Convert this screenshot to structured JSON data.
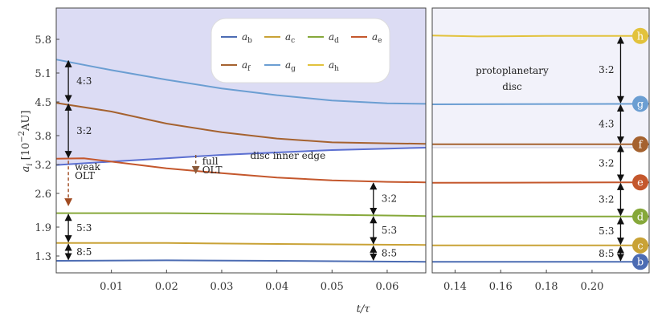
{
  "chart_data": {
    "type": "line",
    "xlabel": "t/τ",
    "ylabel": "a_i [10^-2 AU]",
    "ylim": [
      0.95,
      6.45
    ],
    "grid": false,
    "legend_position": "top-center",
    "panels": [
      {
        "name": "left",
        "xlim": [
          0,
          0.067
        ],
        "xticks": [
          0.01,
          0.02,
          0.03,
          0.04,
          0.05,
          0.06
        ],
        "xtick_labels": [
          "0.01",
          "0.02",
          "0.03",
          "0.04",
          "0.05",
          "0.06"
        ]
      },
      {
        "name": "right",
        "xlim": [
          0.13,
          0.225
        ],
        "xticks": [
          0.14,
          0.16,
          0.18,
          0.2
        ],
        "xtick_labels": [
          "0.14",
          "0.16",
          "0.18",
          "0.20"
        ]
      }
    ],
    "yticks": [
      1.3,
      1.9,
      2.6,
      3.2,
      3.8,
      4.5,
      5.1,
      5.8
    ],
    "ytick_labels": [
      "1.3",
      "1.9",
      "2.6",
      "3.2",
      "3.8",
      "4.5",
      "5.1",
      "5.8"
    ],
    "legend": [
      {
        "key": "b",
        "sub": "b",
        "color": "#4c6cb3"
      },
      {
        "key": "c",
        "sub": "c",
        "color": "#c9a236"
      },
      {
        "key": "d",
        "sub": "d",
        "color": "#86a83a"
      },
      {
        "key": "e",
        "sub": "e",
        "color": "#c4572c"
      },
      {
        "key": "f",
        "sub": "f",
        "color": "#a5622f"
      },
      {
        "key": "g",
        "sub": "g",
        "color": "#6b9ed2"
      },
      {
        "key": "h",
        "sub": "h",
        "color": "#e2c23c"
      }
    ],
    "series": [
      {
        "key": "b",
        "color": "#4c6cb3",
        "left": [
          [
            0,
            1.2
          ],
          [
            0.02,
            1.21
          ],
          [
            0.04,
            1.2
          ],
          [
            0.067,
            1.18
          ]
        ],
        "right": [
          [
            0.13,
            1.18
          ],
          [
            0.225,
            1.18
          ]
        ]
      },
      {
        "key": "c",
        "color": "#c9a236",
        "left": [
          [
            0,
            1.57
          ],
          [
            0.02,
            1.57
          ],
          [
            0.04,
            1.55
          ],
          [
            0.067,
            1.53
          ]
        ],
        "right": [
          [
            0.13,
            1.52
          ],
          [
            0.225,
            1.52
          ]
        ]
      },
      {
        "key": "d",
        "color": "#86a83a",
        "left": [
          [
            0,
            2.19
          ],
          [
            0.02,
            2.19
          ],
          [
            0.04,
            2.17
          ],
          [
            0.067,
            2.13
          ]
        ],
        "right": [
          [
            0.13,
            2.12
          ],
          [
            0.225,
            2.12
          ]
        ]
      },
      {
        "key": "e",
        "color": "#c4572c",
        "left": [
          [
            0,
            3.32
          ],
          [
            0.005,
            3.33
          ],
          [
            0.01,
            3.26
          ],
          [
            0.02,
            3.12
          ],
          [
            0.03,
            3.02
          ],
          [
            0.04,
            2.93
          ],
          [
            0.05,
            2.87
          ],
          [
            0.06,
            2.84
          ],
          [
            0.067,
            2.83
          ]
        ],
        "right": [
          [
            0.13,
            2.82
          ],
          [
            0.225,
            2.83
          ]
        ]
      },
      {
        "key": "f",
        "color": "#a5622f",
        "left": [
          [
            0,
            4.48
          ],
          [
            0.01,
            4.3
          ],
          [
            0.02,
            4.05
          ],
          [
            0.03,
            3.87
          ],
          [
            0.04,
            3.74
          ],
          [
            0.05,
            3.66
          ],
          [
            0.06,
            3.64
          ],
          [
            0.067,
            3.63
          ]
        ],
        "right": [
          [
            0.13,
            3.62
          ],
          [
            0.225,
            3.62
          ]
        ]
      },
      {
        "key": "g",
        "color": "#6b9ed2",
        "left": [
          [
            0,
            5.38
          ],
          [
            0.01,
            5.16
          ],
          [
            0.02,
            4.96
          ],
          [
            0.03,
            4.78
          ],
          [
            0.04,
            4.64
          ],
          [
            0.05,
            4.53
          ],
          [
            0.06,
            4.47
          ],
          [
            0.067,
            4.46
          ]
        ],
        "right": [
          [
            0.13,
            4.45
          ],
          [
            0.225,
            4.46
          ]
        ]
      },
      {
        "key": "h",
        "color": "#e2c23c",
        "left": [],
        "right": [
          [
            0.13,
            5.88
          ],
          [
            0.15,
            5.86
          ],
          [
            0.18,
            5.87
          ],
          [
            0.225,
            5.87
          ]
        ]
      }
    ],
    "disc_inner_edge": {
      "label": "disc inner edge",
      "color": "#5b6fd0",
      "fill": "#dcdcf4",
      "left": [
        [
          0,
          3.19
        ],
        [
          0.01,
          3.26
        ],
        [
          0.02,
          3.33
        ],
        [
          0.03,
          3.4
        ],
        [
          0.04,
          3.45
        ],
        [
          0.05,
          3.5
        ],
        [
          0.06,
          3.53
        ],
        [
          0.067,
          3.55
        ]
      ],
      "right_edge_value": 3.55,
      "right_fill": "#f2f2fa"
    },
    "region_label": [
      "protoplanetary",
      "disc"
    ],
    "ratio_arrows": [
      {
        "panel": "left",
        "x": 0.0022,
        "y1": 5.38,
        "y2": 4.48,
        "label": "4:3"
      },
      {
        "panel": "left",
        "x": 0.0022,
        "y1": 4.48,
        "y2": 3.32,
        "label": "3:2"
      },
      {
        "panel": "left",
        "x": 0.0022,
        "y1": 2.19,
        "y2": 1.57,
        "label": "5:3"
      },
      {
        "panel": "left",
        "x": 0.0022,
        "y1": 1.57,
        "y2": 1.2,
        "label": "8:5"
      },
      {
        "panel": "left",
        "x": 0.0575,
        "y1": 2.84,
        "y2": 2.14,
        "label": "3:2"
      },
      {
        "panel": "left",
        "x": 0.0575,
        "y1": 2.14,
        "y2": 1.53,
        "label": "5:3"
      },
      {
        "panel": "left",
        "x": 0.0575,
        "y1": 1.53,
        "y2": 1.19,
        "label": "8:5"
      },
      {
        "panel": "right",
        "x": 0.2125,
        "y1": 5.87,
        "y2": 4.46,
        "label": "3:2"
      },
      {
        "panel": "right",
        "x": 0.2125,
        "y1": 4.46,
        "y2": 3.62,
        "label": "4:3"
      },
      {
        "panel": "right",
        "x": 0.2125,
        "y1": 3.62,
        "y2": 2.83,
        "label": "3:2"
      },
      {
        "panel": "right",
        "x": 0.2125,
        "y1": 2.83,
        "y2": 2.12,
        "label": "3:2"
      },
      {
        "panel": "right",
        "x": 0.2125,
        "y1": 2.12,
        "y2": 1.52,
        "label": "5:3"
      },
      {
        "panel": "right",
        "x": 0.2125,
        "y1": 1.52,
        "y2": 1.18,
        "label": "8:5"
      }
    ],
    "olt_annotations": [
      {
        "lines": [
          "weak",
          "OLT"
        ],
        "x": 0.0022,
        "y_from": 3.28,
        "y_to": 2.35,
        "color": "#a04a20"
      },
      {
        "lines": [
          "full",
          "OLT"
        ],
        "x": 0.0253,
        "y_from": 3.4,
        "y_to": 3.02,
        "color": "#8a5a3a"
      }
    ],
    "planet_markers": [
      {
        "letter": "h",
        "y": 5.87,
        "color": "#e2c23c"
      },
      {
        "letter": "g",
        "y": 4.46,
        "color": "#6b9ed2"
      },
      {
        "letter": "f",
        "y": 3.62,
        "color": "#a5622f"
      },
      {
        "letter": "e",
        "y": 2.83,
        "color": "#c4572c"
      },
      {
        "letter": "d",
        "y": 2.12,
        "color": "#86a83a"
      },
      {
        "letter": "c",
        "y": 1.52,
        "color": "#c9a236"
      },
      {
        "letter": "b",
        "y": 1.18,
        "color": "#4c6cb3"
      }
    ]
  }
}
